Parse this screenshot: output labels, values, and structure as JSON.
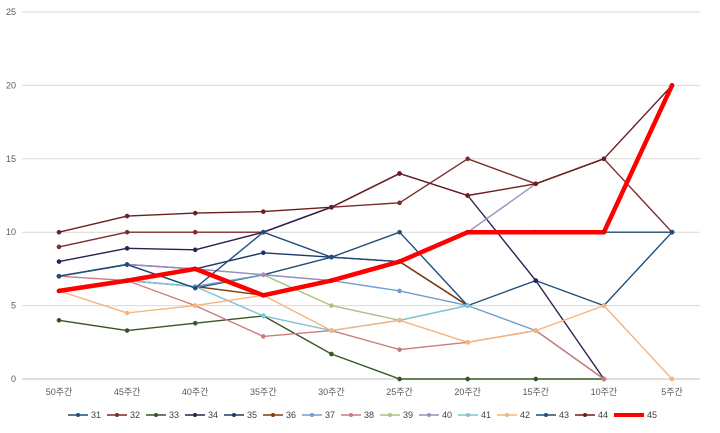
{
  "chart_data": {
    "type": "line",
    "title": "",
    "xlabel": "",
    "ylabel": "",
    "ylim": [
      0,
      25
    ],
    "yticks": [
      0,
      5,
      10,
      15,
      20,
      25
    ],
    "grid": true,
    "legend_position": "bottom",
    "categories": [
      "50주간",
      "45주간",
      "40주간",
      "35주간",
      "30주간",
      "25주간",
      "20주간",
      "15주간",
      "10주간",
      "5주간"
    ],
    "series": [
      {
        "name": "31",
        "color": "#1f4e79",
        "values": [
          7,
          7.8,
          6.2,
          7.1,
          8.3,
          10,
          5,
          6.7,
          5,
          10
        ]
      },
      {
        "name": "32",
        "color": "#7b2c2c",
        "values": [
          9,
          10,
          10,
          10,
          11.7,
          12,
          15,
          13.3,
          15,
          10
        ]
      },
      {
        "name": "33",
        "color": "#375623",
        "values": [
          4,
          3.3,
          3.8,
          4.3,
          1.7,
          0,
          0,
          0,
          0,
          null
        ]
      },
      {
        "name": "34",
        "color": "#2e1f54",
        "values": [
          8,
          8.9,
          8.8,
          10,
          11.7,
          14,
          12.5,
          6.7,
          0,
          null
        ]
      },
      {
        "name": "35",
        "color": "#1f3864",
        "values": [
          7,
          7.8,
          7.5,
          8.6,
          8.3,
          8,
          5,
          null,
          null,
          null
        ]
      },
      {
        "name": "36",
        "color": "#843c0c",
        "values": [
          6,
          6.7,
          6.3,
          5.7,
          6.7,
          8,
          5,
          null,
          null,
          null
        ]
      },
      {
        "name": "37",
        "color": "#6f9ed0",
        "values": [
          6,
          6.7,
          6.3,
          7.1,
          6.7,
          6,
          5,
          3.3,
          0,
          null
        ]
      },
      {
        "name": "38",
        "color": "#cd7b7b",
        "values": [
          7,
          6.7,
          5,
          2.9,
          3.3,
          2,
          2.5,
          3.3,
          0,
          null
        ]
      },
      {
        "name": "39",
        "color": "#a9c47f",
        "values": [
          6,
          6.7,
          7.5,
          7.1,
          5,
          4,
          5,
          null,
          null,
          null
        ]
      },
      {
        "name": "40",
        "color": "#a08cc0",
        "values": [
          7,
          7.8,
          7.5,
          7.1,
          6.7,
          8,
          10,
          13.3,
          15,
          null
        ]
      },
      {
        "name": "41",
        "color": "#7fc4d4",
        "values": [
          6,
          6.7,
          6.3,
          4.3,
          3.3,
          4,
          5,
          null,
          null,
          null
        ]
      },
      {
        "name": "42",
        "color": "#f5b57f",
        "values": [
          6,
          4.5,
          5,
          5.7,
          3.3,
          4,
          2.5,
          3.3,
          5,
          0
        ]
      },
      {
        "name": "43",
        "color": "#1f4e79",
        "values": [
          7,
          7.8,
          6.2,
          10,
          8.3,
          8,
          10,
          10,
          10,
          10
        ]
      },
      {
        "name": "44",
        "color": "#6b1f1f",
        "values": [
          10,
          11.1,
          11.3,
          11.4,
          11.7,
          14,
          12.5,
          13.3,
          15,
          20
        ]
      },
      {
        "name": "45",
        "color": "#ff0000",
        "values": [
          6,
          6.7,
          7.5,
          5.7,
          6.7,
          8,
          10,
          10,
          10,
          20
        ],
        "highlight": true
      }
    ]
  }
}
